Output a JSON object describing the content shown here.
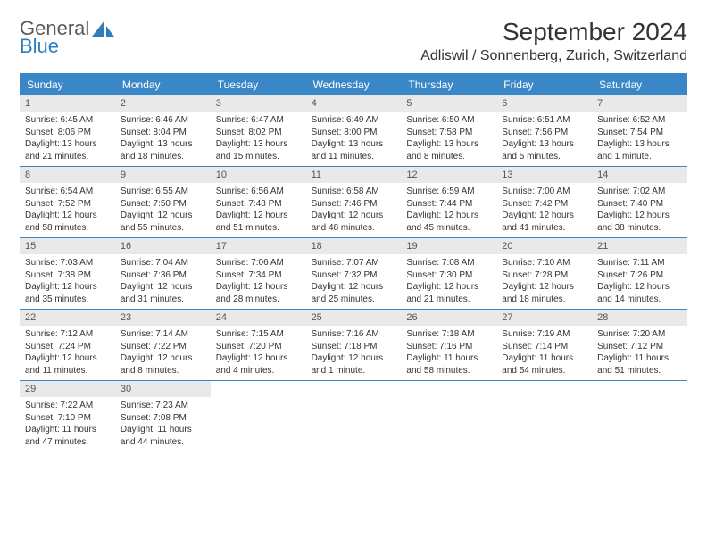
{
  "header": {
    "logo_general": "General",
    "logo_blue": "Blue",
    "month_title": "September 2024",
    "location": "Adliswil / Sonnenberg, Zurich, Switzerland"
  },
  "colors": {
    "header_bg": "#3a87c7",
    "header_text": "#ffffff",
    "daynum_bg": "#e9e9e9",
    "week_border": "#3a87c7",
    "logo_blue": "#2f7fbf",
    "logo_gray": "#5a5a5a"
  },
  "weekdays": [
    "Sunday",
    "Monday",
    "Tuesday",
    "Wednesday",
    "Thursday",
    "Friday",
    "Saturday"
  ],
  "weeks": [
    [
      {
        "n": "1",
        "sunrise": "Sunrise: 6:45 AM",
        "sunset": "Sunset: 8:06 PM",
        "daylight": "Daylight: 13 hours and 21 minutes."
      },
      {
        "n": "2",
        "sunrise": "Sunrise: 6:46 AM",
        "sunset": "Sunset: 8:04 PM",
        "daylight": "Daylight: 13 hours and 18 minutes."
      },
      {
        "n": "3",
        "sunrise": "Sunrise: 6:47 AM",
        "sunset": "Sunset: 8:02 PM",
        "daylight": "Daylight: 13 hours and 15 minutes."
      },
      {
        "n": "4",
        "sunrise": "Sunrise: 6:49 AM",
        "sunset": "Sunset: 8:00 PM",
        "daylight": "Daylight: 13 hours and 11 minutes."
      },
      {
        "n": "5",
        "sunrise": "Sunrise: 6:50 AM",
        "sunset": "Sunset: 7:58 PM",
        "daylight": "Daylight: 13 hours and 8 minutes."
      },
      {
        "n": "6",
        "sunrise": "Sunrise: 6:51 AM",
        "sunset": "Sunset: 7:56 PM",
        "daylight": "Daylight: 13 hours and 5 minutes."
      },
      {
        "n": "7",
        "sunrise": "Sunrise: 6:52 AM",
        "sunset": "Sunset: 7:54 PM",
        "daylight": "Daylight: 13 hours and 1 minute."
      }
    ],
    [
      {
        "n": "8",
        "sunrise": "Sunrise: 6:54 AM",
        "sunset": "Sunset: 7:52 PM",
        "daylight": "Daylight: 12 hours and 58 minutes."
      },
      {
        "n": "9",
        "sunrise": "Sunrise: 6:55 AM",
        "sunset": "Sunset: 7:50 PM",
        "daylight": "Daylight: 12 hours and 55 minutes."
      },
      {
        "n": "10",
        "sunrise": "Sunrise: 6:56 AM",
        "sunset": "Sunset: 7:48 PM",
        "daylight": "Daylight: 12 hours and 51 minutes."
      },
      {
        "n": "11",
        "sunrise": "Sunrise: 6:58 AM",
        "sunset": "Sunset: 7:46 PM",
        "daylight": "Daylight: 12 hours and 48 minutes."
      },
      {
        "n": "12",
        "sunrise": "Sunrise: 6:59 AM",
        "sunset": "Sunset: 7:44 PM",
        "daylight": "Daylight: 12 hours and 45 minutes."
      },
      {
        "n": "13",
        "sunrise": "Sunrise: 7:00 AM",
        "sunset": "Sunset: 7:42 PM",
        "daylight": "Daylight: 12 hours and 41 minutes."
      },
      {
        "n": "14",
        "sunrise": "Sunrise: 7:02 AM",
        "sunset": "Sunset: 7:40 PM",
        "daylight": "Daylight: 12 hours and 38 minutes."
      }
    ],
    [
      {
        "n": "15",
        "sunrise": "Sunrise: 7:03 AM",
        "sunset": "Sunset: 7:38 PM",
        "daylight": "Daylight: 12 hours and 35 minutes."
      },
      {
        "n": "16",
        "sunrise": "Sunrise: 7:04 AM",
        "sunset": "Sunset: 7:36 PM",
        "daylight": "Daylight: 12 hours and 31 minutes."
      },
      {
        "n": "17",
        "sunrise": "Sunrise: 7:06 AM",
        "sunset": "Sunset: 7:34 PM",
        "daylight": "Daylight: 12 hours and 28 minutes."
      },
      {
        "n": "18",
        "sunrise": "Sunrise: 7:07 AM",
        "sunset": "Sunset: 7:32 PM",
        "daylight": "Daylight: 12 hours and 25 minutes."
      },
      {
        "n": "19",
        "sunrise": "Sunrise: 7:08 AM",
        "sunset": "Sunset: 7:30 PM",
        "daylight": "Daylight: 12 hours and 21 minutes."
      },
      {
        "n": "20",
        "sunrise": "Sunrise: 7:10 AM",
        "sunset": "Sunset: 7:28 PM",
        "daylight": "Daylight: 12 hours and 18 minutes."
      },
      {
        "n": "21",
        "sunrise": "Sunrise: 7:11 AM",
        "sunset": "Sunset: 7:26 PM",
        "daylight": "Daylight: 12 hours and 14 minutes."
      }
    ],
    [
      {
        "n": "22",
        "sunrise": "Sunrise: 7:12 AM",
        "sunset": "Sunset: 7:24 PM",
        "daylight": "Daylight: 12 hours and 11 minutes."
      },
      {
        "n": "23",
        "sunrise": "Sunrise: 7:14 AM",
        "sunset": "Sunset: 7:22 PM",
        "daylight": "Daylight: 12 hours and 8 minutes."
      },
      {
        "n": "24",
        "sunrise": "Sunrise: 7:15 AM",
        "sunset": "Sunset: 7:20 PM",
        "daylight": "Daylight: 12 hours and 4 minutes."
      },
      {
        "n": "25",
        "sunrise": "Sunrise: 7:16 AM",
        "sunset": "Sunset: 7:18 PM",
        "daylight": "Daylight: 12 hours and 1 minute."
      },
      {
        "n": "26",
        "sunrise": "Sunrise: 7:18 AM",
        "sunset": "Sunset: 7:16 PM",
        "daylight": "Daylight: 11 hours and 58 minutes."
      },
      {
        "n": "27",
        "sunrise": "Sunrise: 7:19 AM",
        "sunset": "Sunset: 7:14 PM",
        "daylight": "Daylight: 11 hours and 54 minutes."
      },
      {
        "n": "28",
        "sunrise": "Sunrise: 7:20 AM",
        "sunset": "Sunset: 7:12 PM",
        "daylight": "Daylight: 11 hours and 51 minutes."
      }
    ],
    [
      {
        "n": "29",
        "sunrise": "Sunrise: 7:22 AM",
        "sunset": "Sunset: 7:10 PM",
        "daylight": "Daylight: 11 hours and 47 minutes."
      },
      {
        "n": "30",
        "sunrise": "Sunrise: 7:23 AM",
        "sunset": "Sunset: 7:08 PM",
        "daylight": "Daylight: 11 hours and 44 minutes."
      },
      null,
      null,
      null,
      null,
      null
    ]
  ]
}
